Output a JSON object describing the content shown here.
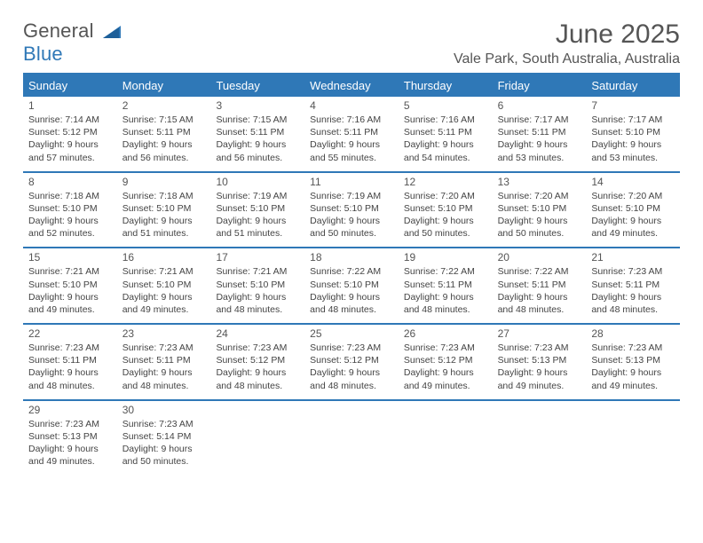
{
  "colors": {
    "accent": "#2f78b7",
    "text": "#444444",
    "background": "#ffffff"
  },
  "logo": {
    "word1": "General",
    "word2": "Blue"
  },
  "title": "June 2025",
  "location": "Vale Park, South Australia, Australia",
  "daysOfWeek": [
    "Sunday",
    "Monday",
    "Tuesday",
    "Wednesday",
    "Thursday",
    "Friday",
    "Saturday"
  ],
  "weeks": [
    [
      {
        "n": "1",
        "sunrise": "Sunrise: 7:14 AM",
        "sunset": "Sunset: 5:12 PM",
        "dl1": "Daylight: 9 hours",
        "dl2": "and 57 minutes."
      },
      {
        "n": "2",
        "sunrise": "Sunrise: 7:15 AM",
        "sunset": "Sunset: 5:11 PM",
        "dl1": "Daylight: 9 hours",
        "dl2": "and 56 minutes."
      },
      {
        "n": "3",
        "sunrise": "Sunrise: 7:15 AM",
        "sunset": "Sunset: 5:11 PM",
        "dl1": "Daylight: 9 hours",
        "dl2": "and 56 minutes."
      },
      {
        "n": "4",
        "sunrise": "Sunrise: 7:16 AM",
        "sunset": "Sunset: 5:11 PM",
        "dl1": "Daylight: 9 hours",
        "dl2": "and 55 minutes."
      },
      {
        "n": "5",
        "sunrise": "Sunrise: 7:16 AM",
        "sunset": "Sunset: 5:11 PM",
        "dl1": "Daylight: 9 hours",
        "dl2": "and 54 minutes."
      },
      {
        "n": "6",
        "sunrise": "Sunrise: 7:17 AM",
        "sunset": "Sunset: 5:11 PM",
        "dl1": "Daylight: 9 hours",
        "dl2": "and 53 minutes."
      },
      {
        "n": "7",
        "sunrise": "Sunrise: 7:17 AM",
        "sunset": "Sunset: 5:10 PM",
        "dl1": "Daylight: 9 hours",
        "dl2": "and 53 minutes."
      }
    ],
    [
      {
        "n": "8",
        "sunrise": "Sunrise: 7:18 AM",
        "sunset": "Sunset: 5:10 PM",
        "dl1": "Daylight: 9 hours",
        "dl2": "and 52 minutes."
      },
      {
        "n": "9",
        "sunrise": "Sunrise: 7:18 AM",
        "sunset": "Sunset: 5:10 PM",
        "dl1": "Daylight: 9 hours",
        "dl2": "and 51 minutes."
      },
      {
        "n": "10",
        "sunrise": "Sunrise: 7:19 AM",
        "sunset": "Sunset: 5:10 PM",
        "dl1": "Daylight: 9 hours",
        "dl2": "and 51 minutes."
      },
      {
        "n": "11",
        "sunrise": "Sunrise: 7:19 AM",
        "sunset": "Sunset: 5:10 PM",
        "dl1": "Daylight: 9 hours",
        "dl2": "and 50 minutes."
      },
      {
        "n": "12",
        "sunrise": "Sunrise: 7:20 AM",
        "sunset": "Sunset: 5:10 PM",
        "dl1": "Daylight: 9 hours",
        "dl2": "and 50 minutes."
      },
      {
        "n": "13",
        "sunrise": "Sunrise: 7:20 AM",
        "sunset": "Sunset: 5:10 PM",
        "dl1": "Daylight: 9 hours",
        "dl2": "and 50 minutes."
      },
      {
        "n": "14",
        "sunrise": "Sunrise: 7:20 AM",
        "sunset": "Sunset: 5:10 PM",
        "dl1": "Daylight: 9 hours",
        "dl2": "and 49 minutes."
      }
    ],
    [
      {
        "n": "15",
        "sunrise": "Sunrise: 7:21 AM",
        "sunset": "Sunset: 5:10 PM",
        "dl1": "Daylight: 9 hours",
        "dl2": "and 49 minutes."
      },
      {
        "n": "16",
        "sunrise": "Sunrise: 7:21 AM",
        "sunset": "Sunset: 5:10 PM",
        "dl1": "Daylight: 9 hours",
        "dl2": "and 49 minutes."
      },
      {
        "n": "17",
        "sunrise": "Sunrise: 7:21 AM",
        "sunset": "Sunset: 5:10 PM",
        "dl1": "Daylight: 9 hours",
        "dl2": "and 48 minutes."
      },
      {
        "n": "18",
        "sunrise": "Sunrise: 7:22 AM",
        "sunset": "Sunset: 5:10 PM",
        "dl1": "Daylight: 9 hours",
        "dl2": "and 48 minutes."
      },
      {
        "n": "19",
        "sunrise": "Sunrise: 7:22 AM",
        "sunset": "Sunset: 5:11 PM",
        "dl1": "Daylight: 9 hours",
        "dl2": "and 48 minutes."
      },
      {
        "n": "20",
        "sunrise": "Sunrise: 7:22 AM",
        "sunset": "Sunset: 5:11 PM",
        "dl1": "Daylight: 9 hours",
        "dl2": "and 48 minutes."
      },
      {
        "n": "21",
        "sunrise": "Sunrise: 7:23 AM",
        "sunset": "Sunset: 5:11 PM",
        "dl1": "Daylight: 9 hours",
        "dl2": "and 48 minutes."
      }
    ],
    [
      {
        "n": "22",
        "sunrise": "Sunrise: 7:23 AM",
        "sunset": "Sunset: 5:11 PM",
        "dl1": "Daylight: 9 hours",
        "dl2": "and 48 minutes."
      },
      {
        "n": "23",
        "sunrise": "Sunrise: 7:23 AM",
        "sunset": "Sunset: 5:11 PM",
        "dl1": "Daylight: 9 hours",
        "dl2": "and 48 minutes."
      },
      {
        "n": "24",
        "sunrise": "Sunrise: 7:23 AM",
        "sunset": "Sunset: 5:12 PM",
        "dl1": "Daylight: 9 hours",
        "dl2": "and 48 minutes."
      },
      {
        "n": "25",
        "sunrise": "Sunrise: 7:23 AM",
        "sunset": "Sunset: 5:12 PM",
        "dl1": "Daylight: 9 hours",
        "dl2": "and 48 minutes."
      },
      {
        "n": "26",
        "sunrise": "Sunrise: 7:23 AM",
        "sunset": "Sunset: 5:12 PM",
        "dl1": "Daylight: 9 hours",
        "dl2": "and 49 minutes."
      },
      {
        "n": "27",
        "sunrise": "Sunrise: 7:23 AM",
        "sunset": "Sunset: 5:13 PM",
        "dl1": "Daylight: 9 hours",
        "dl2": "and 49 minutes."
      },
      {
        "n": "28",
        "sunrise": "Sunrise: 7:23 AM",
        "sunset": "Sunset: 5:13 PM",
        "dl1": "Daylight: 9 hours",
        "dl2": "and 49 minutes."
      }
    ],
    [
      {
        "n": "29",
        "sunrise": "Sunrise: 7:23 AM",
        "sunset": "Sunset: 5:13 PM",
        "dl1": "Daylight: 9 hours",
        "dl2": "and 49 minutes."
      },
      {
        "n": "30",
        "sunrise": "Sunrise: 7:23 AM",
        "sunset": "Sunset: 5:14 PM",
        "dl1": "Daylight: 9 hours",
        "dl2": "and 50 minutes."
      },
      null,
      null,
      null,
      null,
      null
    ]
  ]
}
